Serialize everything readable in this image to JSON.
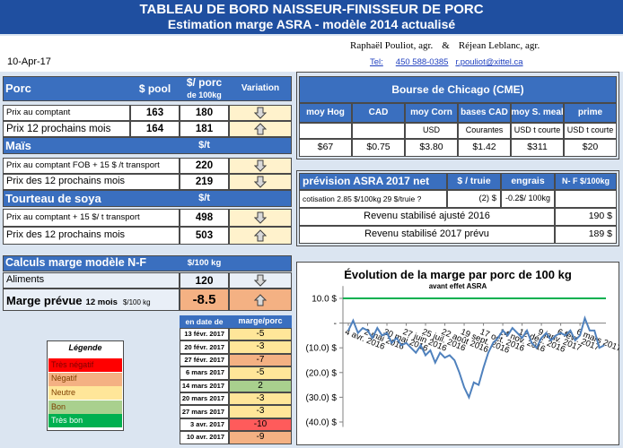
{
  "header": {
    "title": "TABLEAU DE BORD NAISSEUR-FINISSEUR DE PORC",
    "subtitle": "Estimation marge ASRA - modèle 2014 actualisé",
    "date": "10-Apr-17",
    "author1": "Raphaël Pouliot, agr.",
    "amp": "&",
    "author2": "Réjean Leblanc, agr.",
    "tel_label": "Tel:",
    "phone": "450 588-0385",
    "email": "r.pouliot@xittel.ca"
  },
  "porc": {
    "title": "Porc",
    "col_pool": "$ pool",
    "col_porc": "$/ porc",
    "col_porc_unit": "de 100kg",
    "col_variation": "Variation",
    "rows": [
      [
        "Prix au comptant",
        "163",
        "180"
      ],
      [
        "Prix 12 prochains mois",
        "164",
        "181"
      ]
    ]
  },
  "mais": {
    "title": "Maïs",
    "unit": "$/t",
    "rows": [
      [
        "Prix au comptant FOB + 15 $ /t transport",
        "220"
      ],
      [
        "Prix des 12 prochains mois",
        "219"
      ]
    ]
  },
  "soya": {
    "title": "Tourteau de soya",
    "unit": "$/t",
    "rows": [
      [
        "Prix au comptant + 15 $/ t transport",
        "498"
      ],
      [
        "Prix des 12 prochains mois",
        "503"
      ]
    ]
  },
  "calculs": {
    "title": "Calculs marge  modèle N-F",
    "unit": "$/100 kg",
    "aliments_label": "Aliments",
    "aliments_value": "120",
    "marge_label": "Marge prévue",
    "marge_sub": "12 mois",
    "marge_unit": "$/100 kg",
    "marge_value": "-8.5"
  },
  "history": {
    "col_date": "en date de",
    "col_value": "marge/porc",
    "rows": [
      {
        "date": "13 févr. 2017",
        "value": -5,
        "color": "#ffe699"
      },
      {
        "date": "20 févr. 2017",
        "value": -3,
        "color": "#ffe699"
      },
      {
        "date": "27 févr. 2017",
        "value": -7,
        "color": "#f4b183"
      },
      {
        "date": "6 mars 2017",
        "value": -5,
        "color": "#ffe699"
      },
      {
        "date": "14 mars 2017",
        "value": 2,
        "color": "#a9d08e"
      },
      {
        "date": "20 mars 2017",
        "value": -3,
        "color": "#ffe699"
      },
      {
        "date": "27 mars 2017",
        "value": -3,
        "color": "#ffe699"
      },
      {
        "date": "3 avr. 2017",
        "value": -10,
        "color": "#ff5b5b"
      },
      {
        "date": "10 avr. 2017",
        "value": -9,
        "color": "#f4b183"
      }
    ]
  },
  "legend": {
    "title": "Légende",
    "items": [
      {
        "label": "Très négatif",
        "color": "#ff0000"
      },
      {
        "label": "Négatif",
        "color": "#f4b183"
      },
      {
        "label": "Neutre",
        "color": "#ffe699"
      },
      {
        "label": "Bon",
        "color": "#a9d08e"
      },
      {
        "label": "Très bon",
        "color": "#00b050"
      }
    ]
  },
  "chicago": {
    "title": "Bourse de Chicago (CME)",
    "columns": [
      {
        "name": "moy Hog",
        "value": "$67"
      },
      {
        "name": "CAD",
        "value": "$0.75"
      },
      {
        "name": "moy Corn",
        "unit": "USD",
        "value": "$3.80"
      },
      {
        "name": "bases CAD",
        "unit": "Courantes",
        "value": "$1.42"
      },
      {
        "name": "moy S. meal",
        "unit": "USD t courte",
        "value": "$311"
      },
      {
        "name": "prime",
        "unit": "USD t courte",
        "value": "$20"
      }
    ]
  },
  "prevision": {
    "title": "prévision ASRA 2017 net",
    "col_truie": "$ / truie",
    "col_engrais": "engrais",
    "col_nf": "N- F $/100kg",
    "cotisation_label": "cotisation 2.85 $/100kg 29 $/truie ?",
    "cotisation_truie": "(2) $",
    "cotisation_engrais": "-0.2$/ 100kg",
    "revenu2016_label": "Revenu stabilisé ajusté 2016",
    "revenu2016_value": "190 $",
    "revenu2017_label": "Revenu stabilisé 2017 prévu",
    "revenu2017_value": "189 $"
  },
  "chart_data": {
    "type": "line",
    "title": "Évolution de la marge par porc de 100 kg",
    "subtitle": "avant effet ASRA",
    "categories": [
      "4 avr. 2016",
      null,
      null,
      null,
      "2 mai 2016",
      null,
      null,
      null,
      "30 mai 2016",
      null,
      null,
      null,
      "27 juin 2016",
      null,
      null,
      null,
      "25 juil. 2016",
      null,
      null,
      null,
      "22 août 2016",
      null,
      null,
      null,
      "19 sept. 2016",
      null,
      null,
      null,
      "17 oct. 2016",
      null,
      null,
      null,
      "14 nov. 2016",
      null,
      null,
      null,
      "12 déc. 2016",
      null,
      null,
      null,
      "9 janv. 2017",
      null,
      null,
      null,
      "6 févr. 2017",
      null,
      null,
      null,
      "6 mars 2017",
      null,
      null,
      null,
      null,
      null
    ],
    "values": [
      -3,
      1,
      -4,
      -2,
      -3,
      -6,
      -2,
      -5,
      -4,
      -8,
      -6,
      -9,
      -8,
      -10,
      -12,
      -9,
      -13,
      -11,
      -16,
      -12,
      -14,
      -13,
      -15,
      -20,
      -26,
      -30,
      -24,
      -25,
      -18,
      -12,
      -8,
      -6,
      -3,
      -5,
      -2,
      -4,
      -6,
      -3,
      -8,
      -10,
      -6,
      -4,
      -7,
      -5,
      -4,
      -5,
      -3,
      -7,
      -5,
      2,
      -3,
      -3,
      -10,
      -9
    ],
    "color": "#4f81bd",
    "ylim": [
      -42,
      15
    ],
    "yticks": [
      {
        "value": 10,
        "label": "10.0 $"
      },
      {
        "value": 0,
        "label": "-"
      },
      {
        "value": -10,
        "label": "(10.0) $"
      },
      {
        "value": -20,
        "label": "(20.0) $"
      },
      {
        "value": -30,
        "label": "(30.0) $"
      },
      {
        "value": -40,
        "label": "(40.0) $"
      }
    ],
    "reference_line": {
      "value": 10,
      "color": "#00b050"
    }
  }
}
